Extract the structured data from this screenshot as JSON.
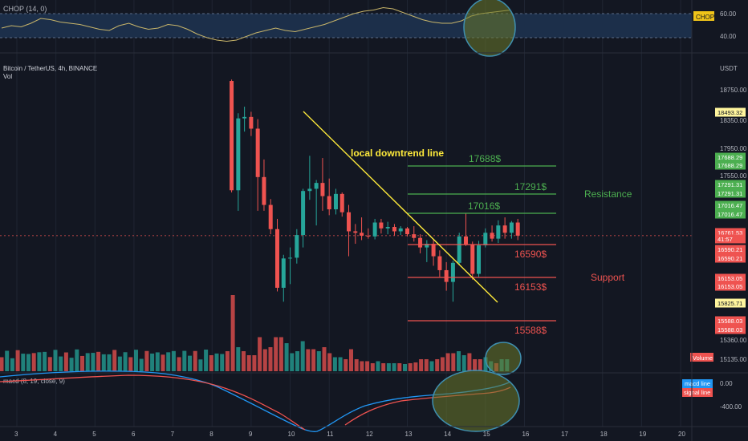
{
  "chop": {
    "label": "CHOP (14, 0)",
    "badge": "CHOP",
    "axis_ticks": [
      "60.00",
      "40.00"
    ],
    "values": [
      48,
      50,
      49,
      52,
      56,
      55,
      53,
      52,
      51,
      49,
      47,
      46,
      50,
      52,
      49,
      47,
      48,
      51,
      50,
      47,
      43,
      40,
      38,
      37,
      38,
      41,
      44,
      46,
      48,
      46,
      45,
      47,
      49,
      51,
      54,
      57,
      60,
      62,
      63,
      65,
      64,
      61,
      58,
      55,
      53,
      52,
      52,
      54,
      58,
      60,
      61,
      62,
      63
    ]
  },
  "main_pane": {
    "symbol": "Bitcoin / TetherUS, 4h, BINANCE",
    "vol_label": "Vol",
    "currency": "USDT",
    "price_ticks": [
      "18750.00",
      "18350.00",
      "17950.00",
      "17550.00",
      "15360.00",
      "15135.00"
    ],
    "price_tags": [
      {
        "text": "18493.32",
        "type": "yellow"
      },
      {
        "text": "17688.29",
        "type": "green"
      },
      {
        "text": "17688.29",
        "type": "green"
      },
      {
        "text": "17291.31",
        "type": "green"
      },
      {
        "text": "17291.31",
        "type": "green"
      },
      {
        "text": "17016.47",
        "type": "green"
      },
      {
        "text": "17016.47",
        "type": "green"
      },
      {
        "text": "16761.53",
        "type": "red"
      },
      {
        "text": "41:57",
        "type": "red"
      },
      {
        "text": "16590.21",
        "type": "red"
      },
      {
        "text": "16590.21",
        "type": "red"
      },
      {
        "text": "16153.05",
        "type": "red"
      },
      {
        "text": "16153.05",
        "type": "red"
      },
      {
        "text": "15825.71",
        "type": "yellow"
      },
      {
        "text": "15588.03",
        "type": "red"
      },
      {
        "text": "15588.03",
        "type": "red"
      }
    ],
    "volume_tag": "Volume",
    "downtrend_label": "local downtrend line",
    "resistance_label": "Resistance",
    "support_label": "Support",
    "levels": [
      {
        "price": 17688,
        "label": "17688$",
        "kind": "resistance"
      },
      {
        "price": 17291,
        "label": "17291$",
        "kind": "resistance"
      },
      {
        "price": 17016,
        "label": "17016$",
        "kind": "resistance"
      },
      {
        "price": 16590,
        "label": "16590$",
        "kind": "support"
      },
      {
        "price": 16153,
        "label": "16153$",
        "kind": "support"
      },
      {
        "price": 15588,
        "label": "15588$",
        "kind": "support"
      }
    ]
  },
  "macd": {
    "label": "macd (8, 19, close, 9)",
    "axis_ticks": [
      "0.00",
      "-400.00"
    ],
    "macd_tag": "macd line",
    "signal_tag": "signal line"
  },
  "x_axis": {
    "ticks": [
      "3",
      "4",
      "5",
      "6",
      "7",
      "8",
      "9",
      "10",
      "11",
      "12",
      "13",
      "14",
      "15",
      "16",
      "17",
      "18",
      "19",
      "20"
    ]
  },
  "colors": {
    "up": "#26a69a",
    "down": "#ef5350",
    "resistance": "#4caf50",
    "support": "#ef5350",
    "trendline": "#ffeb3b",
    "macd": "#2196f3",
    "signal": "#ef5350"
  },
  "chart_data": {
    "type": "candlestick",
    "title": "Bitcoin / TetherUS, 4h, BINANCE",
    "ylim": [
      15135,
      18900
    ],
    "candles": [
      {
        "date": "8.5",
        "o": 18870,
        "h": 18890,
        "l": 17350,
        "c": 17380
      },
      {
        "date": "8.67",
        "o": 17380,
        "h": 18430,
        "l": 17100,
        "c": 18360
      },
      {
        "date": "8.83",
        "o": 18360,
        "h": 18520,
        "l": 18180,
        "c": 18380
      },
      {
        "date": "9.0",
        "o": 18380,
        "h": 18450,
        "l": 18120,
        "c": 18220
      },
      {
        "date": "9.17",
        "o": 18220,
        "h": 18350,
        "l": 17100,
        "c": 17560
      },
      {
        "date": "9.33",
        "o": 17560,
        "h": 17800,
        "l": 17100,
        "c": 17180
      },
      {
        "date": "9.5",
        "o": 17180,
        "h": 17260,
        "l": 16780,
        "c": 16850
      },
      {
        "date": "9.67",
        "o": 16850,
        "h": 16990,
        "l": 16000,
        "c": 16050
      },
      {
        "date": "9.83",
        "o": 16050,
        "h": 16500,
        "l": 15860,
        "c": 16450
      },
      {
        "date": "10.0",
        "o": 16450,
        "h": 16600,
        "l": 16100,
        "c": 16460
      },
      {
        "date": "10.17",
        "o": 16460,
        "h": 16850,
        "l": 16380,
        "c": 16770
      },
      {
        "date": "10.33",
        "o": 16770,
        "h": 17400,
        "l": 16600,
        "c": 17370
      },
      {
        "date": "10.5",
        "o": 17370,
        "h": 17850,
        "l": 17250,
        "c": 17400
      },
      {
        "date": "10.67",
        "o": 17400,
        "h": 17520,
        "l": 16900,
        "c": 17480
      },
      {
        "date": "10.83",
        "o": 17480,
        "h": 17820,
        "l": 17100,
        "c": 17300
      },
      {
        "date": "11.0",
        "o": 17300,
        "h": 17540,
        "l": 17040,
        "c": 17120
      },
      {
        "date": "11.17",
        "o": 17120,
        "h": 17400,
        "l": 17050,
        "c": 17330
      },
      {
        "date": "11.33",
        "o": 17330,
        "h": 17350,
        "l": 17020,
        "c": 17080
      },
      {
        "date": "11.5",
        "o": 17080,
        "h": 17180,
        "l": 16480,
        "c": 16820
      },
      {
        "date": "11.67",
        "o": 16820,
        "h": 16920,
        "l": 16650,
        "c": 16800
      },
      {
        "date": "11.83",
        "o": 16800,
        "h": 17010,
        "l": 16700,
        "c": 16760
      },
      {
        "date": "12.0",
        "o": 16760,
        "h": 16860,
        "l": 16720,
        "c": 16750
      },
      {
        "date": "12.17",
        "o": 16750,
        "h": 16990,
        "l": 16710,
        "c": 16940
      },
      {
        "date": "12.33",
        "o": 16940,
        "h": 16990,
        "l": 16790,
        "c": 16860
      },
      {
        "date": "12.5",
        "o": 16860,
        "h": 16950,
        "l": 16780,
        "c": 16880
      },
      {
        "date": "12.67",
        "o": 16880,
        "h": 16920,
        "l": 16760,
        "c": 16820
      },
      {
        "date": "12.83",
        "o": 16820,
        "h": 16890,
        "l": 16770,
        "c": 16860
      },
      {
        "date": "13.0",
        "o": 16860,
        "h": 16880,
        "l": 16750,
        "c": 16780
      },
      {
        "date": "13.17",
        "o": 16780,
        "h": 16890,
        "l": 16680,
        "c": 16730
      },
      {
        "date": "13.33",
        "o": 16730,
        "h": 16780,
        "l": 16520,
        "c": 16600
      },
      {
        "date": "13.5",
        "o": 16600,
        "h": 16700,
        "l": 16400,
        "c": 16650
      },
      {
        "date": "13.67",
        "o": 16650,
        "h": 16700,
        "l": 16350,
        "c": 16480
      },
      {
        "date": "13.83",
        "o": 16480,
        "h": 16560,
        "l": 16200,
        "c": 16290
      },
      {
        "date": "14.0",
        "o": 16290,
        "h": 16400,
        "l": 16010,
        "c": 16130
      },
      {
        "date": "14.17",
        "o": 16130,
        "h": 16420,
        "l": 15860,
        "c": 16390
      },
      {
        "date": "14.33",
        "o": 16390,
        "h": 16800,
        "l": 16360,
        "c": 16750
      },
      {
        "date": "14.5",
        "o": 16750,
        "h": 17060,
        "l": 16620,
        "c": 16640
      },
      {
        "date": "14.67",
        "o": 16640,
        "h": 16680,
        "l": 16160,
        "c": 16240
      },
      {
        "date": "14.83",
        "o": 16240,
        "h": 16690,
        "l": 16200,
        "c": 16630
      },
      {
        "date": "15.0",
        "o": 16630,
        "h": 16860,
        "l": 16600,
        "c": 16800
      },
      {
        "date": "15.17",
        "o": 16800,
        "h": 16900,
        "l": 16680,
        "c": 16720
      },
      {
        "date": "15.33",
        "o": 16720,
        "h": 16970,
        "l": 16660,
        "c": 16900
      },
      {
        "date": "15.5",
        "o": 16900,
        "h": 17010,
        "l": 16720,
        "c": 16800
      },
      {
        "date": "15.67",
        "o": 16800,
        "h": 16960,
        "l": 16720,
        "c": 16940
      },
      {
        "date": "15.83",
        "o": 16940,
        "h": 16990,
        "l": 16700,
        "c": 16761
      }
    ],
    "volume": [
      {
        "v": 1.9,
        "up": false
      },
      {
        "v": 0.6,
        "up": true
      },
      {
        "v": 0.5,
        "up": false
      },
      {
        "v": 0.4,
        "up": false
      },
      {
        "v": 0.85,
        "up": false
      },
      {
        "v": 0.55,
        "up": false
      },
      {
        "v": 0.6,
        "up": false
      },
      {
        "v": 0.85,
        "up": false
      },
      {
        "v": 0.7,
        "up": true
      },
      {
        "v": 0.45,
        "up": true
      },
      {
        "v": 0.5,
        "up": true
      },
      {
        "v": 0.75,
        "up": true
      },
      {
        "v": 0.55,
        "up": false
      },
      {
        "v": 0.5,
        "up": true
      },
      {
        "v": 0.6,
        "up": false
      },
      {
        "v": 0.45,
        "up": false
      },
      {
        "v": 0.35,
        "up": true
      },
      {
        "v": 0.3,
        "up": false
      },
      {
        "v": 0.55,
        "up": false
      },
      {
        "v": 0.3,
        "up": false
      },
      {
        "v": 0.25,
        "up": false
      },
      {
        "v": 0.2,
        "up": false
      },
      {
        "v": 0.25,
        "up": true
      },
      {
        "v": 0.2,
        "up": false
      },
      {
        "v": 0.2,
        "up": true
      },
      {
        "v": 0.2,
        "up": false
      },
      {
        "v": 0.18,
        "up": true
      },
      {
        "v": 0.2,
        "up": false
      },
      {
        "v": 0.22,
        "up": false
      },
      {
        "v": 0.3,
        "up": false
      },
      {
        "v": 0.25,
        "up": true
      },
      {
        "v": 0.3,
        "up": false
      },
      {
        "v": 0.35,
        "up": false
      },
      {
        "v": 0.45,
        "up": false
      },
      {
        "v": 0.5,
        "up": true
      },
      {
        "v": 0.4,
        "up": true
      },
      {
        "v": 0.45,
        "up": false
      },
      {
        "v": 0.3,
        "up": false
      },
      {
        "v": 0.35,
        "up": true
      },
      {
        "v": 0.25,
        "up": true
      },
      {
        "v": 0.2,
        "up": false
      },
      {
        "v": 0.3,
        "up": true
      },
      {
        "v": 0.2,
        "up": false
      },
      {
        "v": 0.35,
        "up": true
      },
      {
        "v": 0.25,
        "up": false
      }
    ]
  }
}
